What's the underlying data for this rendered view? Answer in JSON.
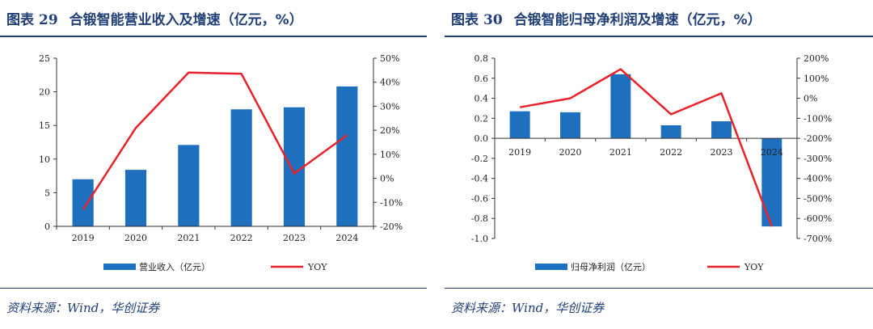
{
  "panels": [
    {
      "figure_label": "图表",
      "figure_number": "29",
      "title": "合锻智能营业收入及增速（亿元，%）",
      "source": "资料来源：Wind，华创证券"
    },
    {
      "figure_label": "图表",
      "figure_number": "30",
      "title": "合锻智能归母净利润及增速（亿元，%）",
      "source": "资料来源：Wind，华创证券"
    }
  ],
  "chart_data": [
    {
      "type": "bar",
      "categories": [
        "2019",
        "2020",
        "2021",
        "2022",
        "2023",
        "2024"
      ],
      "series": [
        {
          "name": "营业收入（亿元）",
          "type": "bar",
          "axis": "left",
          "color": "#1f6fbf",
          "values": [
            7.0,
            8.4,
            12.1,
            17.4,
            17.7,
            20.8
          ]
        },
        {
          "name": "YOY",
          "type": "line",
          "axis": "right",
          "color": "#e8212b",
          "values": [
            -13,
            21,
            44,
            43.5,
            2,
            18
          ]
        }
      ],
      "ylim": [
        0,
        25
      ],
      "yticks": [
        "0",
        "5",
        "10",
        "15",
        "20",
        "25"
      ],
      "y2lim": [
        -20,
        50
      ],
      "y2ticks": [
        "-20%",
        "-10%",
        "0%",
        "10%",
        "20%",
        "30%",
        "40%",
        "50%"
      ],
      "legend_position": "bottom",
      "grid": false
    },
    {
      "type": "bar",
      "categories": [
        "2019",
        "2020",
        "2021",
        "2022",
        "2023",
        "2024"
      ],
      "series": [
        {
          "name": "归母净利润（亿元）",
          "type": "bar",
          "axis": "left",
          "color": "#1f6fbf",
          "values": [
            0.27,
            0.26,
            0.64,
            0.13,
            0.17,
            -0.88
          ]
        },
        {
          "name": "YOY",
          "type": "line",
          "axis": "right",
          "color": "#e8212b",
          "values": [
            -45,
            0,
            145,
            -80,
            25,
            -640
          ]
        }
      ],
      "ylim": [
        -1.0,
        0.8
      ],
      "yticks": [
        "-1.0",
        "-0.8",
        "-0.6",
        "-0.4",
        "-0.2",
        "0.0",
        "0.2",
        "0.4",
        "0.6",
        "0.8"
      ],
      "y2lim": [
        -700,
        200
      ],
      "y2ticks": [
        "-700%",
        "-600%",
        "-500%",
        "-400%",
        "-300%",
        "-200%",
        "-100%",
        "0%",
        "100%",
        "200%"
      ],
      "legend_position": "bottom",
      "grid": false
    }
  ]
}
